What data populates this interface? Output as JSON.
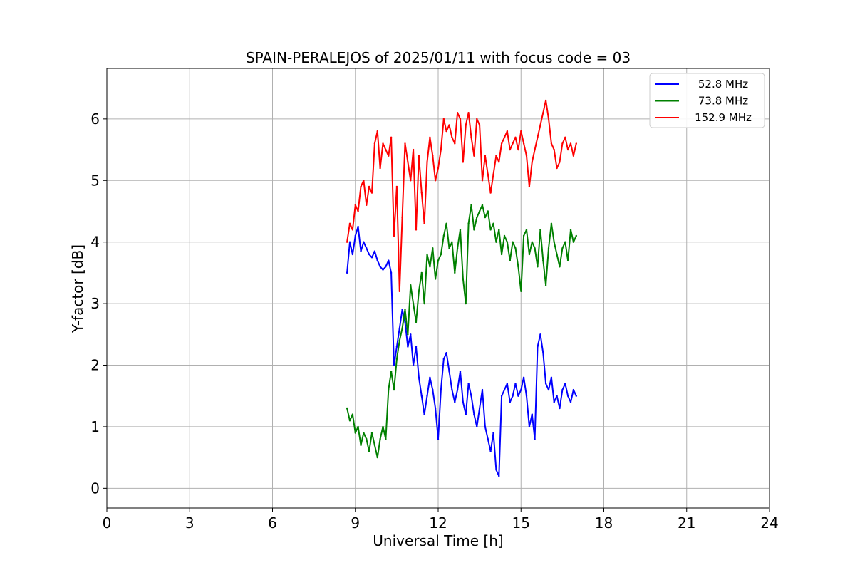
{
  "chart_data": {
    "type": "line",
    "title": "SPAIN-PERALEJOS of 2025/01/11 with focus code = 03",
    "xlabel": "Universal Time [h]",
    "ylabel": "Y-factor [dB]",
    "xlim": [
      0,
      24
    ],
    "ylim": [
      -0.32,
      6.82
    ],
    "xticks": [
      "0",
      "3",
      "6",
      "9",
      "12",
      "15",
      "18",
      "21",
      "24"
    ],
    "xtick_values": [
      0,
      3,
      6,
      9,
      12,
      15,
      18,
      21,
      24
    ],
    "yticks": [
      "0",
      "1",
      "2",
      "3",
      "4",
      "5",
      "6"
    ],
    "ytick_values": [
      0,
      1,
      2,
      3,
      4,
      5,
      6
    ],
    "grid": true,
    "legend_position": "top-right",
    "series": [
      {
        "name": "52.8 MHz",
        "color": "#0000ff",
        "x": [
          8.7,
          8.8,
          8.9,
          9.0,
          9.1,
          9.2,
          9.3,
          9.4,
          9.5,
          9.6,
          9.7,
          9.8,
          9.9,
          10.0,
          10.1,
          10.2,
          10.3,
          10.4,
          10.5,
          10.6,
          10.7,
          10.8,
          10.9,
          11.0,
          11.1,
          11.2,
          11.3,
          11.4,
          11.5,
          11.6,
          11.7,
          11.8,
          11.9,
          12.0,
          12.1,
          12.2,
          12.3,
          12.4,
          12.5,
          12.6,
          12.7,
          12.8,
          12.9,
          13.0,
          13.1,
          13.2,
          13.3,
          13.4,
          13.5,
          13.6,
          13.7,
          13.8,
          13.9,
          14.0,
          14.1,
          14.2,
          14.3,
          14.4,
          14.5,
          14.6,
          14.7,
          14.8,
          14.9,
          15.0,
          15.1,
          15.2,
          15.3,
          15.4,
          15.5,
          15.6,
          15.7,
          15.8,
          15.9,
          16.0,
          16.1,
          16.2,
          16.3,
          16.4,
          16.5,
          16.6,
          16.7,
          16.8,
          16.9,
          17.0
        ],
        "y": [
          3.5,
          4.0,
          3.8,
          4.1,
          4.25,
          3.85,
          4.0,
          3.9,
          3.8,
          3.75,
          3.85,
          3.7,
          3.6,
          3.55,
          3.6,
          3.7,
          3.5,
          2.0,
          2.3,
          2.6,
          2.9,
          2.7,
          2.3,
          2.5,
          2.0,
          2.3,
          1.8,
          1.5,
          1.2,
          1.5,
          1.8,
          1.6,
          1.3,
          0.8,
          1.6,
          2.1,
          2.2,
          1.9,
          1.6,
          1.4,
          1.6,
          1.9,
          1.4,
          1.2,
          1.7,
          1.5,
          1.2,
          1.0,
          1.3,
          1.6,
          1.0,
          0.8,
          0.6,
          0.9,
          0.3,
          0.2,
          1.5,
          1.6,
          1.7,
          1.4,
          1.5,
          1.7,
          1.5,
          1.6,
          1.8,
          1.5,
          1.0,
          1.2,
          0.8,
          2.3,
          2.5,
          2.2,
          1.7,
          1.6,
          1.8,
          1.4,
          1.5,
          1.3,
          1.6,
          1.7,
          1.5,
          1.4,
          1.6,
          1.5
        ]
      },
      {
        "name": "73.8 MHz",
        "color": "#008000",
        "x": [
          8.7,
          8.8,
          8.9,
          9.0,
          9.1,
          9.2,
          9.3,
          9.4,
          9.5,
          9.6,
          9.7,
          9.8,
          9.9,
          10.0,
          10.1,
          10.2,
          10.3,
          10.4,
          10.5,
          10.6,
          10.7,
          10.8,
          10.9,
          11.0,
          11.1,
          11.2,
          11.3,
          11.4,
          11.5,
          11.6,
          11.7,
          11.8,
          11.9,
          12.0,
          12.1,
          12.2,
          12.3,
          12.4,
          12.5,
          12.6,
          12.7,
          12.8,
          12.9,
          13.0,
          13.1,
          13.2,
          13.3,
          13.4,
          13.5,
          13.6,
          13.7,
          13.8,
          13.9,
          14.0,
          14.1,
          14.2,
          14.3,
          14.4,
          14.5,
          14.6,
          14.7,
          14.8,
          14.9,
          15.0,
          15.1,
          15.2,
          15.3,
          15.4,
          15.5,
          15.6,
          15.7,
          15.8,
          15.9,
          16.0,
          16.1,
          16.2,
          16.3,
          16.4,
          16.5,
          16.6,
          16.7,
          16.8,
          16.9,
          17.0
        ],
        "y": [
          1.3,
          1.1,
          1.2,
          0.9,
          1.0,
          0.7,
          0.9,
          0.8,
          0.6,
          0.9,
          0.7,
          0.5,
          0.8,
          1.0,
          0.8,
          1.6,
          1.9,
          1.6,
          2.1,
          2.4,
          2.6,
          2.9,
          2.5,
          3.3,
          3.0,
          2.7,
          3.2,
          3.5,
          3.0,
          3.8,
          3.6,
          3.9,
          3.4,
          3.7,
          3.8,
          4.1,
          4.3,
          3.9,
          4.0,
          3.5,
          3.9,
          4.2,
          3.4,
          3.0,
          4.3,
          4.6,
          4.2,
          4.4,
          4.5,
          4.6,
          4.4,
          4.5,
          4.2,
          4.3,
          4.0,
          4.2,
          3.8,
          4.1,
          4.0,
          3.7,
          4.0,
          3.9,
          3.6,
          3.2,
          4.1,
          4.2,
          3.8,
          4.0,
          3.9,
          3.6,
          4.2,
          3.7,
          3.3,
          3.9,
          4.3,
          4.0,
          3.8,
          3.6,
          3.9,
          4.0,
          3.7,
          4.2,
          4.0,
          4.1
        ]
      },
      {
        "name": "152.9 MHz",
        "color": "#ff0000",
        "x": [
          8.7,
          8.8,
          8.9,
          9.0,
          9.1,
          9.2,
          9.3,
          9.4,
          9.5,
          9.6,
          9.7,
          9.8,
          9.9,
          10.0,
          10.1,
          10.2,
          10.3,
          10.4,
          10.5,
          10.6,
          10.7,
          10.8,
          10.9,
          11.0,
          11.1,
          11.2,
          11.3,
          11.4,
          11.5,
          11.6,
          11.7,
          11.8,
          11.9,
          12.0,
          12.1,
          12.2,
          12.3,
          12.4,
          12.5,
          12.6,
          12.7,
          12.8,
          12.9,
          13.0,
          13.1,
          13.2,
          13.3,
          13.4,
          13.5,
          13.6,
          13.7,
          13.8,
          13.9,
          14.0,
          14.1,
          14.2,
          14.3,
          14.4,
          14.5,
          14.6,
          14.7,
          14.8,
          14.9,
          15.0,
          15.1,
          15.2,
          15.3,
          15.4,
          15.5,
          15.6,
          15.7,
          15.8,
          15.9,
          16.0,
          16.1,
          16.2,
          16.3,
          16.4,
          16.5,
          16.6,
          16.7,
          16.8,
          16.9,
          17.0
        ],
        "y": [
          4.0,
          4.3,
          4.2,
          4.6,
          4.5,
          4.9,
          5.0,
          4.6,
          4.9,
          4.8,
          5.6,
          5.8,
          5.2,
          5.6,
          5.5,
          5.4,
          5.7,
          4.1,
          4.9,
          3.2,
          4.4,
          5.6,
          5.3,
          5.0,
          5.5,
          4.2,
          5.4,
          4.8,
          4.3,
          5.3,
          5.7,
          5.4,
          5.0,
          5.2,
          5.5,
          6.0,
          5.8,
          5.9,
          5.7,
          5.6,
          6.1,
          6.0,
          5.3,
          5.9,
          6.1,
          5.7,
          5.4,
          6.0,
          5.9,
          5.0,
          5.4,
          5.1,
          4.8,
          5.1,
          5.4,
          5.3,
          5.6,
          5.7,
          5.8,
          5.5,
          5.6,
          5.7,
          5.5,
          5.8,
          5.6,
          5.4,
          4.9,
          5.3,
          5.5,
          5.7,
          5.9,
          6.1,
          6.3,
          6.0,
          5.6,
          5.5,
          5.2,
          5.3,
          5.6,
          5.7,
          5.5,
          5.6,
          5.4,
          5.6
        ]
      }
    ]
  }
}
